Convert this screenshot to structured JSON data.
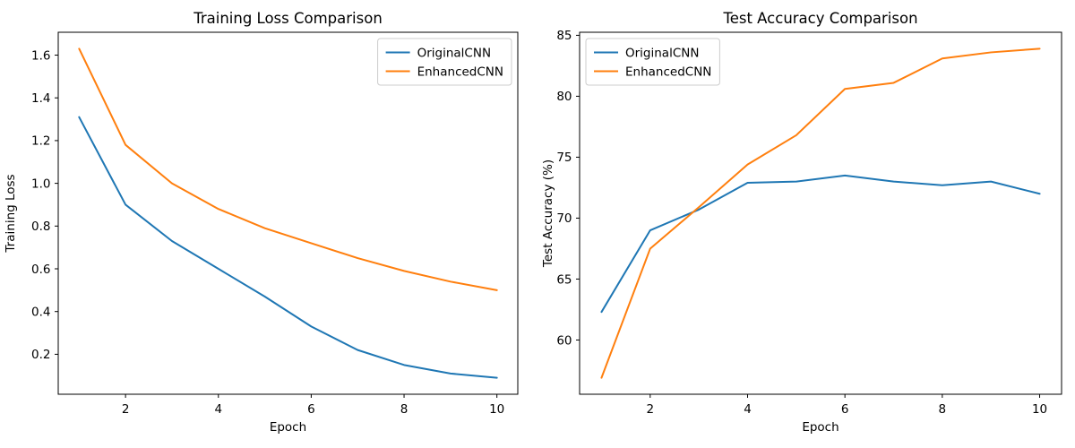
{
  "figure": {
    "background": "#ffffff",
    "axis_color": "#000000",
    "legend_border_color": "#cccccc",
    "legend_background": "#ffffff"
  },
  "chart_data": [
    {
      "type": "line",
      "title": "Training Loss Comparison",
      "xlabel": "Epoch",
      "ylabel": "Training Loss",
      "x": [
        1,
        2,
        3,
        4,
        5,
        6,
        7,
        8,
        9,
        10
      ],
      "series": [
        {
          "name": "OriginalCNN",
          "color": "#1f77b4",
          "values": [
            1.31,
            0.9,
            0.73,
            0.6,
            0.47,
            0.33,
            0.22,
            0.15,
            0.11,
            0.09
          ]
        },
        {
          "name": "EnhancedCNN",
          "color": "#ff7f0e",
          "values": [
            1.63,
            1.18,
            1.0,
            0.88,
            0.79,
            0.72,
            0.65,
            0.59,
            0.54,
            0.5
          ]
        }
      ],
      "xlim": [
        0.55,
        10.45
      ],
      "ylim": [
        0.013,
        1.707
      ],
      "xticks": [
        2,
        4,
        6,
        8,
        10
      ],
      "yticks": [
        0.2,
        0.4,
        0.6,
        0.8,
        1.0,
        1.2,
        1.4,
        1.6
      ],
      "ytick_format": "1dp",
      "legend_position": "top-right",
      "legend": [
        "OriginalCNN",
        "EnhancedCNN"
      ],
      "grid": false
    },
    {
      "type": "line",
      "title": "Test Accuracy Comparison",
      "xlabel": "Epoch",
      "ylabel": "Test Accuracy (%)",
      "x": [
        1,
        2,
        3,
        4,
        5,
        6,
        7,
        8,
        9,
        10
      ],
      "series": [
        {
          "name": "OriginalCNN",
          "color": "#1f77b4",
          "values": [
            62.3,
            69.0,
            70.7,
            72.9,
            73.0,
            73.5,
            73.0,
            72.7,
            73.0,
            72.0
          ]
        },
        {
          "name": "EnhancedCNN",
          "color": "#ff7f0e",
          "values": [
            56.9,
            67.5,
            70.9,
            74.4,
            76.8,
            80.6,
            81.1,
            83.1,
            83.6,
            83.9
          ]
        }
      ],
      "xlim": [
        0.55,
        10.45
      ],
      "ylim": [
        55.55,
        85.25
      ],
      "xticks": [
        2,
        4,
        6,
        8,
        10
      ],
      "yticks": [
        60,
        65,
        70,
        75,
        80,
        85
      ],
      "ytick_format": "int",
      "legend_position": "top-left",
      "legend": [
        "OriginalCNN",
        "EnhancedCNN"
      ],
      "grid": false
    }
  ]
}
